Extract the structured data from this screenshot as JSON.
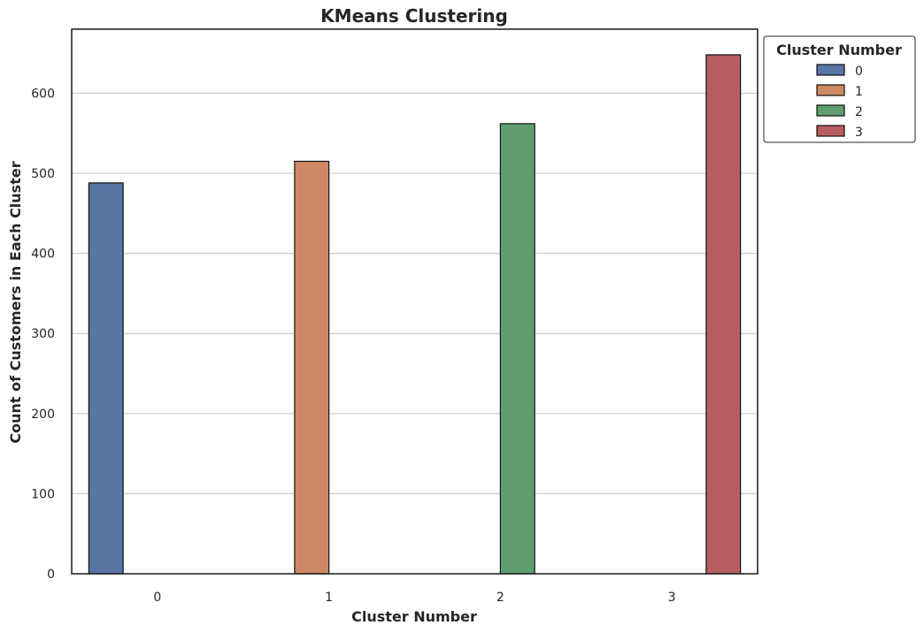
{
  "chart_data": {
    "type": "bar",
    "title": "KMeans Clustering",
    "xlabel": "Cluster Number",
    "ylabel": "Count of Customers in Each Cluster",
    "categories": [
      "0",
      "1",
      "2",
      "3"
    ],
    "series": [
      {
        "name": "0",
        "color": "#5875a4",
        "values": [
          488,
          null,
          null,
          null
        ]
      },
      {
        "name": "1",
        "color": "#cc8963",
        "values": [
          null,
          515,
          null,
          null
        ]
      },
      {
        "name": "2",
        "color": "#5f9e6e",
        "values": [
          null,
          null,
          562,
          null
        ]
      },
      {
        "name": "3",
        "color": "#b55d60",
        "values": [
          null,
          null,
          null,
          648
        ]
      }
    ],
    "ylim": [
      0,
      680
    ],
    "yticks": [
      0,
      100,
      200,
      300,
      400,
      500,
      600
    ],
    "grid": "horizontal",
    "legend": {
      "title": "Cluster Number",
      "placement": "outside-top-right"
    }
  }
}
